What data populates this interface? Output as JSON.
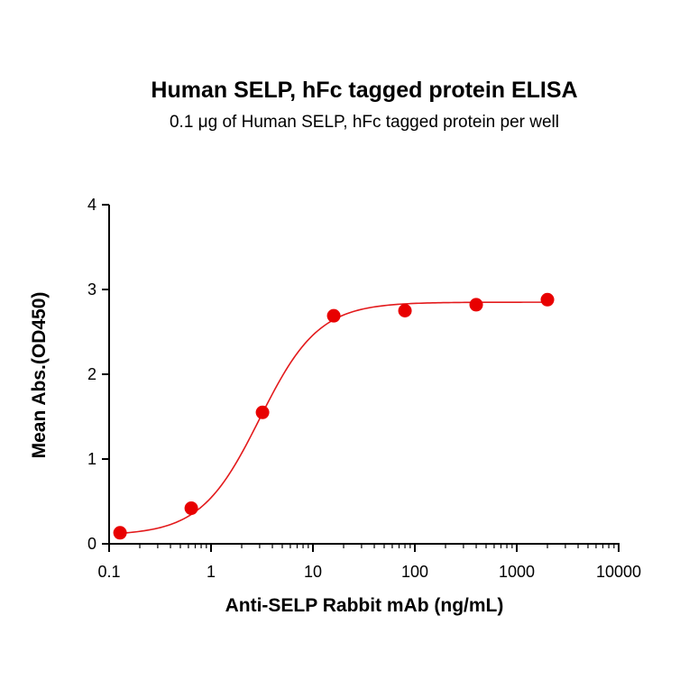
{
  "chart_data": {
    "type": "scatter",
    "title": "Human SELP, hFc tagged protein ELISA",
    "subtitle": "0.1 μg of Human SELP, hFc tagged protein per well",
    "xlabel": "Anti-SELP Rabbit mAb (ng/mL)",
    "ylabel": "Mean Abs.(OD450)",
    "xscale": "log",
    "xlim": [
      0.1,
      10000
    ],
    "ylim": [
      0,
      4
    ],
    "x_ticks": [
      "0.1",
      "1",
      "10",
      "100",
      "1000",
      "10000"
    ],
    "y_ticks": [
      "0",
      "1",
      "2",
      "3",
      "4"
    ],
    "grid": false,
    "colors": {
      "points": "#e80000",
      "curve": "#e31a1c",
      "axes": "#000000"
    },
    "series": [
      {
        "x": [
          0.128,
          0.64,
          3.2,
          16,
          80,
          400,
          2000
        ],
        "y": [
          0.13,
          0.42,
          1.55,
          2.69,
          2.75,
          2.82,
          2.88
        ]
      }
    ],
    "fit": {
      "model": "4PL",
      "bottom": 0.1,
      "top": 2.85,
      "ec50": 3.0,
      "hill": 1.5
    }
  }
}
